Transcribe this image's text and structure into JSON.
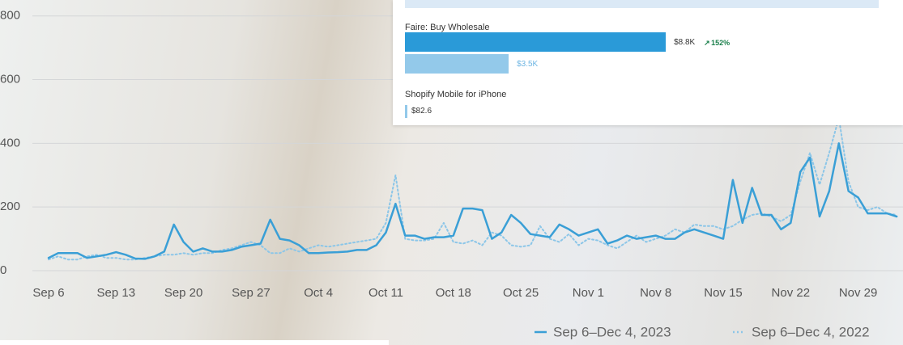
{
  "chart_data": {
    "type": "line",
    "categories": [
      "Sep 6",
      null,
      null,
      null,
      null,
      null,
      null,
      "Sep 13",
      null,
      null,
      null,
      null,
      null,
      null,
      "Sep 20",
      null,
      null,
      null,
      null,
      null,
      null,
      "Sep 27",
      null,
      null,
      null,
      null,
      null,
      null,
      "Oct 4",
      null,
      null,
      null,
      null,
      null,
      null,
      "Oct 11",
      null,
      null,
      null,
      null,
      null,
      null,
      "Oct 18",
      null,
      null,
      null,
      null,
      null,
      null,
      "Oct 25",
      null,
      null,
      null,
      null,
      null,
      null,
      "Nov 1",
      null,
      null,
      null,
      null,
      null,
      null,
      "Nov 8",
      null,
      null,
      null,
      null,
      null,
      null,
      "Nov 15",
      null,
      null,
      null,
      null,
      null,
      null,
      "Nov 22",
      null,
      null,
      null,
      null,
      null,
      null,
      "Nov 29",
      null,
      null,
      null,
      null
    ],
    "series": [
      {
        "name": "Sep 6–Dec 4, 2023",
        "color": "#3a9fd6",
        "values": [
          40,
          55,
          55,
          55,
          40,
          45,
          50,
          58,
          50,
          38,
          37,
          45,
          60,
          145,
          90,
          60,
          70,
          60,
          60,
          65,
          75,
          80,
          85,
          160,
          100,
          95,
          80,
          55,
          55,
          57,
          58,
          60,
          65,
          65,
          80,
          120,
          210,
          110,
          110,
          100,
          105,
          105,
          110,
          195,
          195,
          190,
          100,
          120,
          175,
          150,
          115,
          110,
          105,
          145,
          130,
          110,
          120,
          130,
          85,
          95,
          110,
          100,
          105,
          110,
          100,
          100,
          120,
          130,
          120,
          110,
          100,
          285,
          150,
          260,
          175,
          175,
          130,
          150,
          310,
          355,
          170,
          250,
          400,
          250,
          230,
          180,
          180,
          180,
          170
        ]
      },
      {
        "name": "Sep 6–Dec 4, 2022",
        "color": "#8cc6e8",
        "dashed": true,
        "values": [
          35,
          45,
          35,
          35,
          45,
          50,
          40,
          40,
          35,
          35,
          40,
          45,
          50,
          50,
          55,
          50,
          55,
          55,
          65,
          70,
          80,
          90,
          80,
          55,
          55,
          70,
          60,
          70,
          80,
          75,
          80,
          85,
          90,
          95,
          100,
          150,
          300,
          100,
          95,
          95,
          100,
          150,
          90,
          85,
          95,
          80,
          120,
          110,
          80,
          75,
          80,
          140,
          100,
          90,
          115,
          80,
          100,
          95,
          80,
          70,
          90,
          110,
          90,
          100,
          110,
          130,
          120,
          145,
          140,
          140,
          130,
          140,
          160,
          175,
          180,
          170,
          155,
          175,
          280,
          370,
          270,
          370,
          480,
          280,
          200,
          190,
          200,
          180,
          175
        ]
      }
    ],
    "ylim": [
      0,
      850
    ],
    "yticks": [
      0,
      200,
      400,
      600,
      800
    ],
    "grid": true
  },
  "panel": {
    "items": [
      {
        "name": "Faire: Buy Wholesale",
        "values": [
          8800,
          3500
        ],
        "value_labels": [
          "$8.8K",
          "$3.5K"
        ],
        "change": "152%"
      },
      {
        "name": "Shopify Mobile for iPhone",
        "values": [
          82.6
        ],
        "value_labels": [
          "$82.6"
        ]
      }
    ]
  }
}
